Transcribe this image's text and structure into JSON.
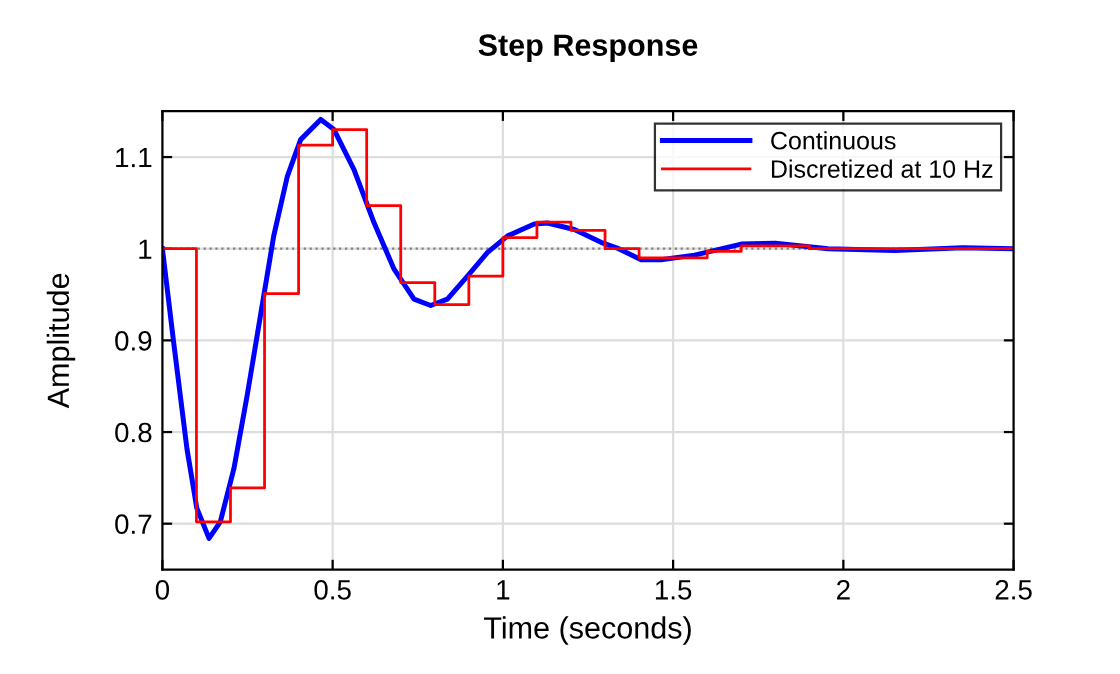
{
  "chart_data": {
    "type": "line",
    "title": "Step Response",
    "xlabel": "Time (seconds)",
    "ylabel": "Amplitude",
    "series": [
      {
        "name": "Continuous",
        "color": "#0000ff",
        "x": [
          0,
          0.033,
          0.072,
          0.101,
          0.137,
          0.17,
          0.21,
          0.249,
          0.288,
          0.327,
          0.367,
          0.406,
          0.465,
          0.504,
          0.563,
          0.622,
          0.68,
          0.739,
          0.788,
          0.837,
          0.896,
          0.955,
          1.014,
          1.092,
          1.131,
          1.21,
          1.288,
          1.34,
          1.406,
          1.465,
          1.563,
          1.7,
          1.8,
          1.955,
          2.15,
          2.35,
          2.5
        ],
        "values": [
          1.0,
          0.898,
          0.782,
          0.717,
          0.684,
          0.702,
          0.76,
          0.84,
          0.927,
          1.014,
          1.079,
          1.119,
          1.141,
          1.13,
          1.086,
          1.028,
          0.978,
          0.945,
          0.938,
          0.945,
          0.97,
          0.996,
          1.014,
          1.027,
          1.028,
          1.021,
          1.007,
          1.0,
          0.988,
          0.988,
          0.993,
          1.005,
          1.006,
          1.0,
          0.998,
          1.001,
          1.0
        ]
      },
      {
        "name": "Discretized at 10 Hz",
        "color": "#ff0000",
        "type": "step",
        "x": [
          0,
          0.1,
          0.2,
          0.3,
          0.4,
          0.5,
          0.6,
          0.7,
          0.8,
          0.9,
          1.0,
          1.1,
          1.2,
          1.3,
          1.4,
          1.5,
          1.6,
          1.7,
          1.8,
          1.9,
          2.0,
          2.1,
          2.2,
          2.3,
          2.4,
          2.5
        ],
        "values": [
          1.0,
          0.702,
          0.739,
          0.951,
          1.113,
          1.13,
          1.047,
          0.963,
          0.939,
          0.97,
          1.012,
          1.029,
          1.02,
          1.0,
          0.99,
          0.99,
          0.997,
          1.003,
          1.003,
          1.0,
          1.0,
          1.0,
          1.0,
          1.0,
          1.0,
          1.0
        ]
      }
    ],
    "xlim": [
      0,
      2.5
    ],
    "xticks": [
      0,
      0.5,
      1,
      1.5,
      2,
      2.5
    ],
    "ylim": [
      0.65,
      1.15
    ],
    "yticks": [
      0.7,
      0.8,
      0.9,
      1,
      1.1
    ],
    "ref_lines": [
      {
        "axis": "y",
        "value": 1,
        "color": "#808080",
        "line_style": "dotted"
      }
    ],
    "grid": true,
    "legend": "top right"
  }
}
